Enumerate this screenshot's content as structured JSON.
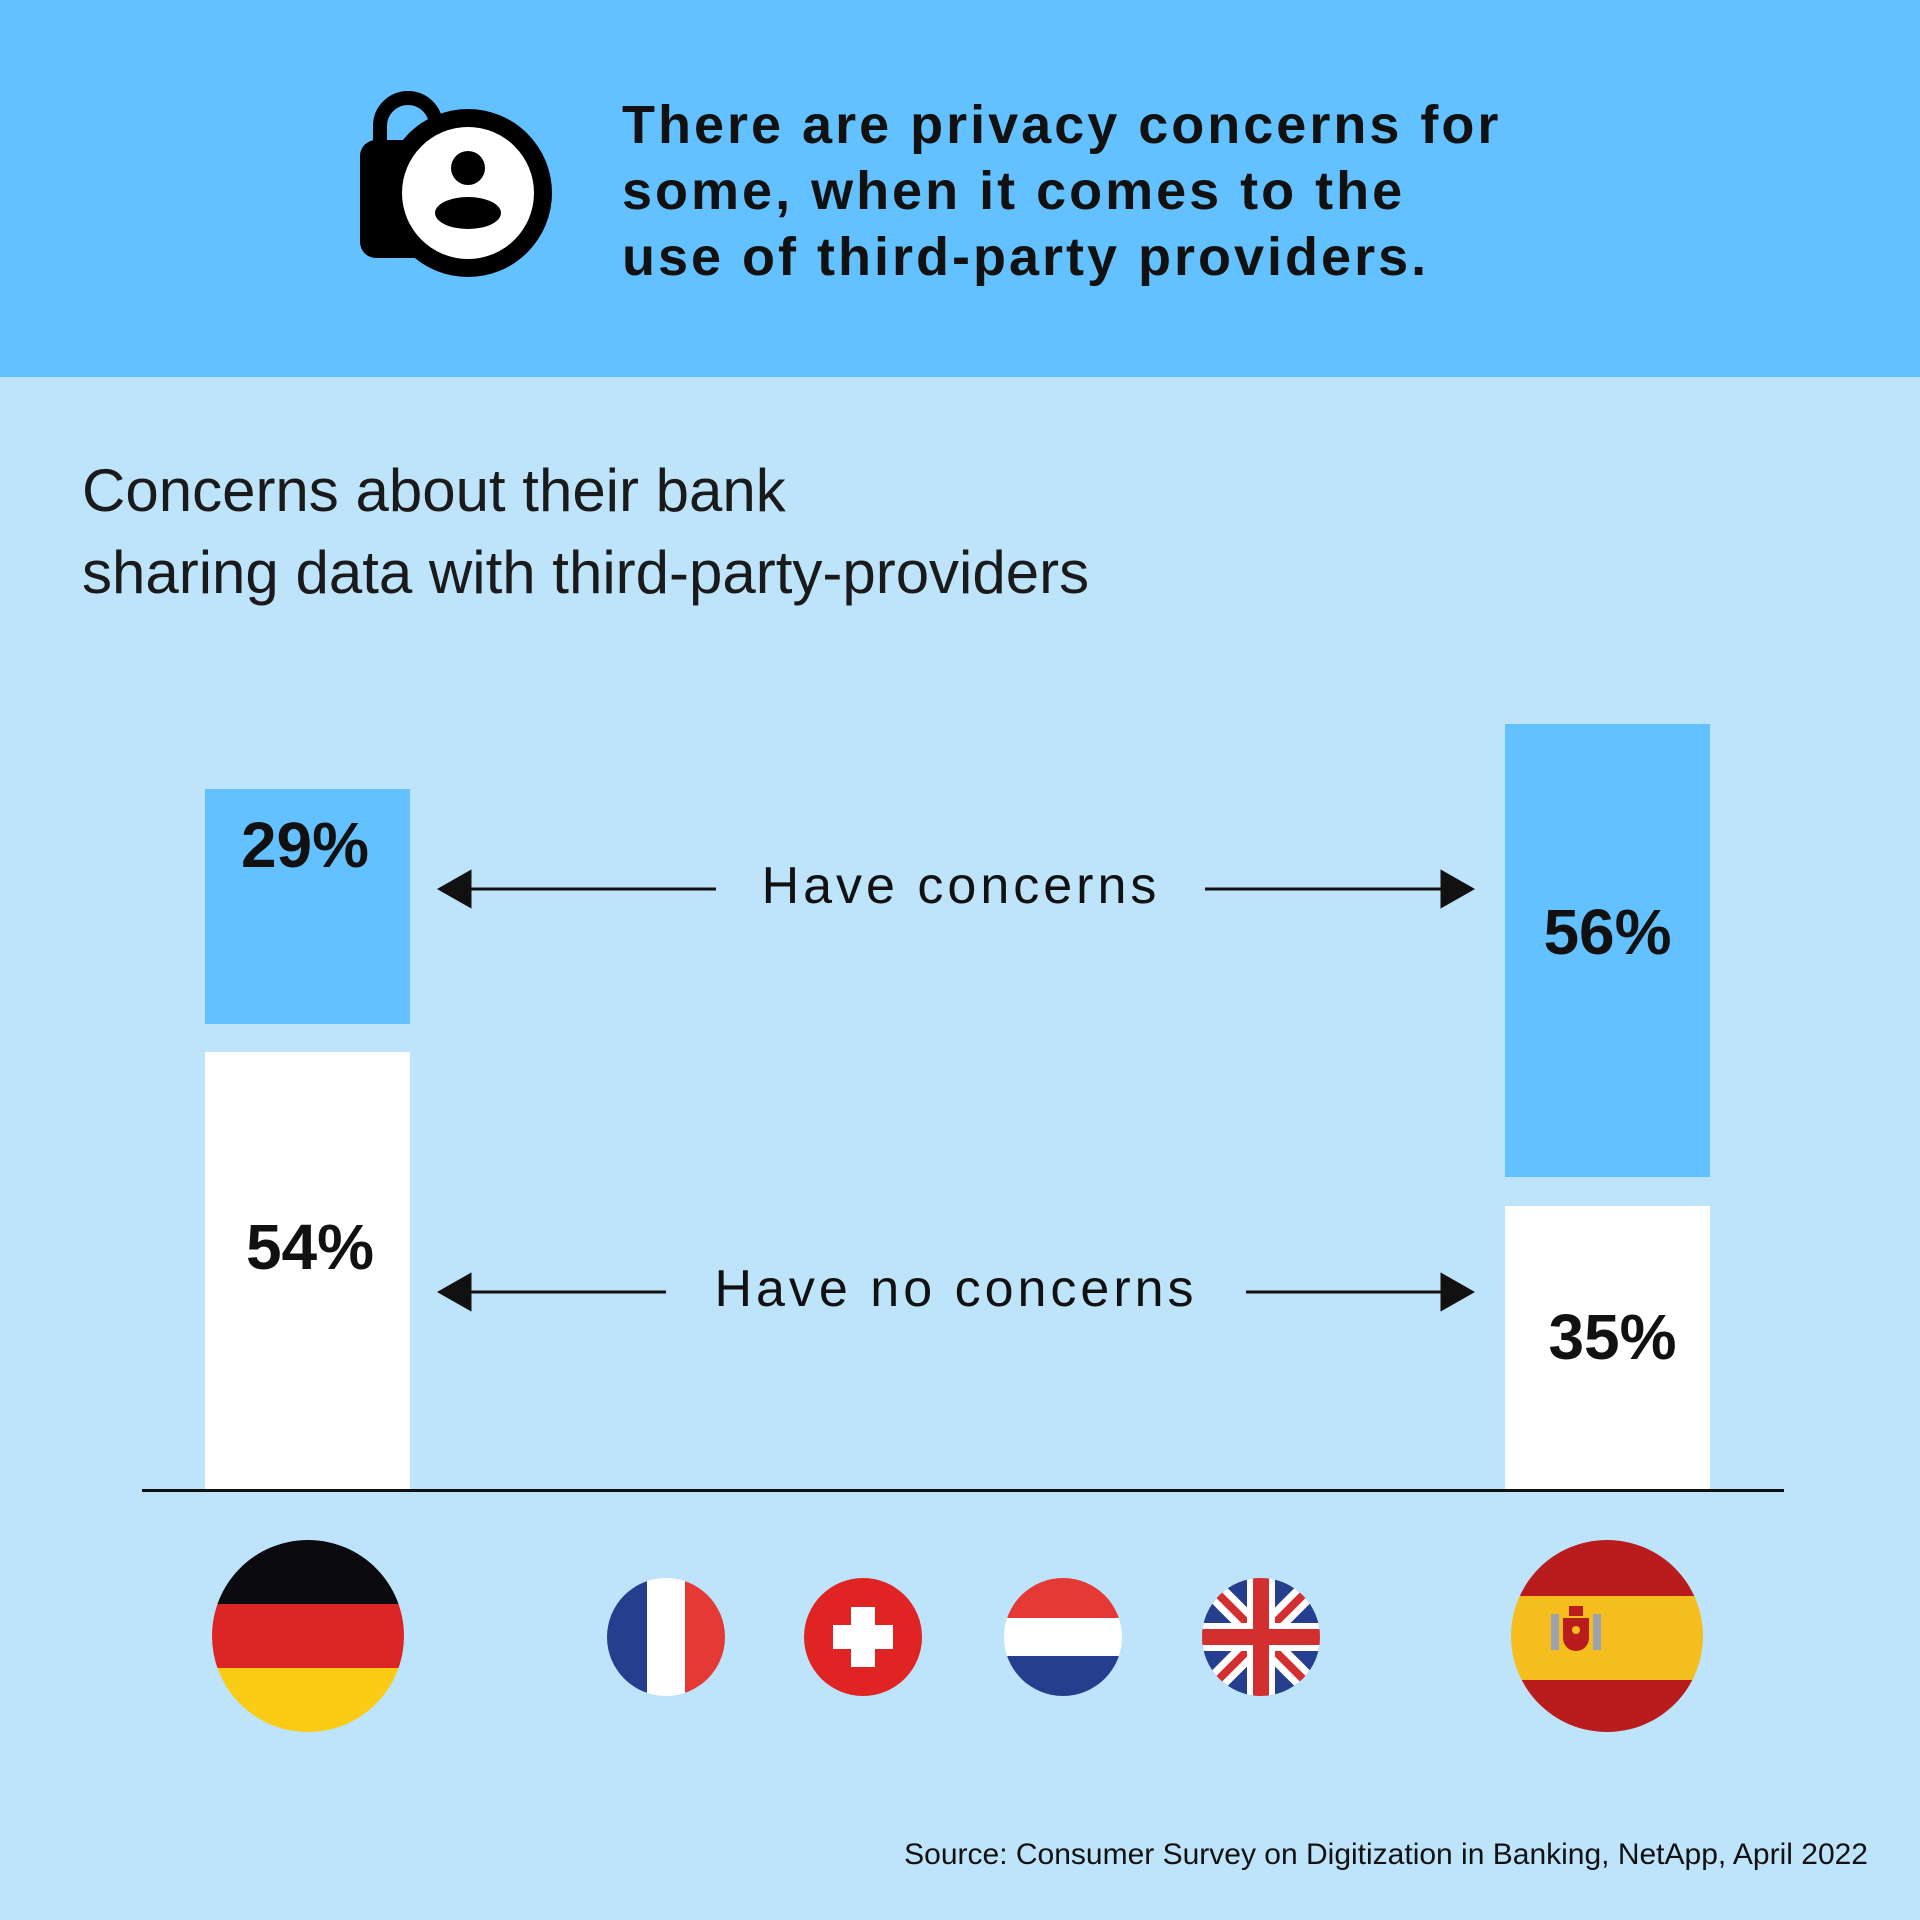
{
  "header": {
    "icon": "lock-person-icon",
    "lines": [
      "There are privacy concerns for",
      "some, when it comes to the",
      "use of third-party providers."
    ]
  },
  "subtitle_lines": [
    "Concerns about their bank",
    "sharing data with third-party-providers"
  ],
  "legend": {
    "concerns": "Have concerns",
    "no_concerns": "Have no concerns"
  },
  "colors": {
    "concerns": "#62c1fe",
    "no_concerns": "#ffffff",
    "header_bg": "#62c1fe",
    "page_bg": "#bde4fb"
  },
  "chart_data": {
    "type": "bar",
    "categories": [
      "Germany",
      "Spain"
    ],
    "series": [
      {
        "name": "Have concerns",
        "values": [
          29,
          56
        ],
        "labels": [
          "29%",
          "56%"
        ]
      },
      {
        "name": "Have no concerns",
        "values": [
          54,
          35
        ],
        "labels": [
          "54%",
          "35%"
        ]
      }
    ],
    "stacked": true,
    "unit": "%"
  },
  "flags": [
    "germany-flag",
    "france-flag",
    "switzerland-flag",
    "netherlands-flag",
    "uk-flag",
    "spain-flag"
  ],
  "source": "Source: Consumer Survey on Digitization in Banking, NetApp, April 2022"
}
